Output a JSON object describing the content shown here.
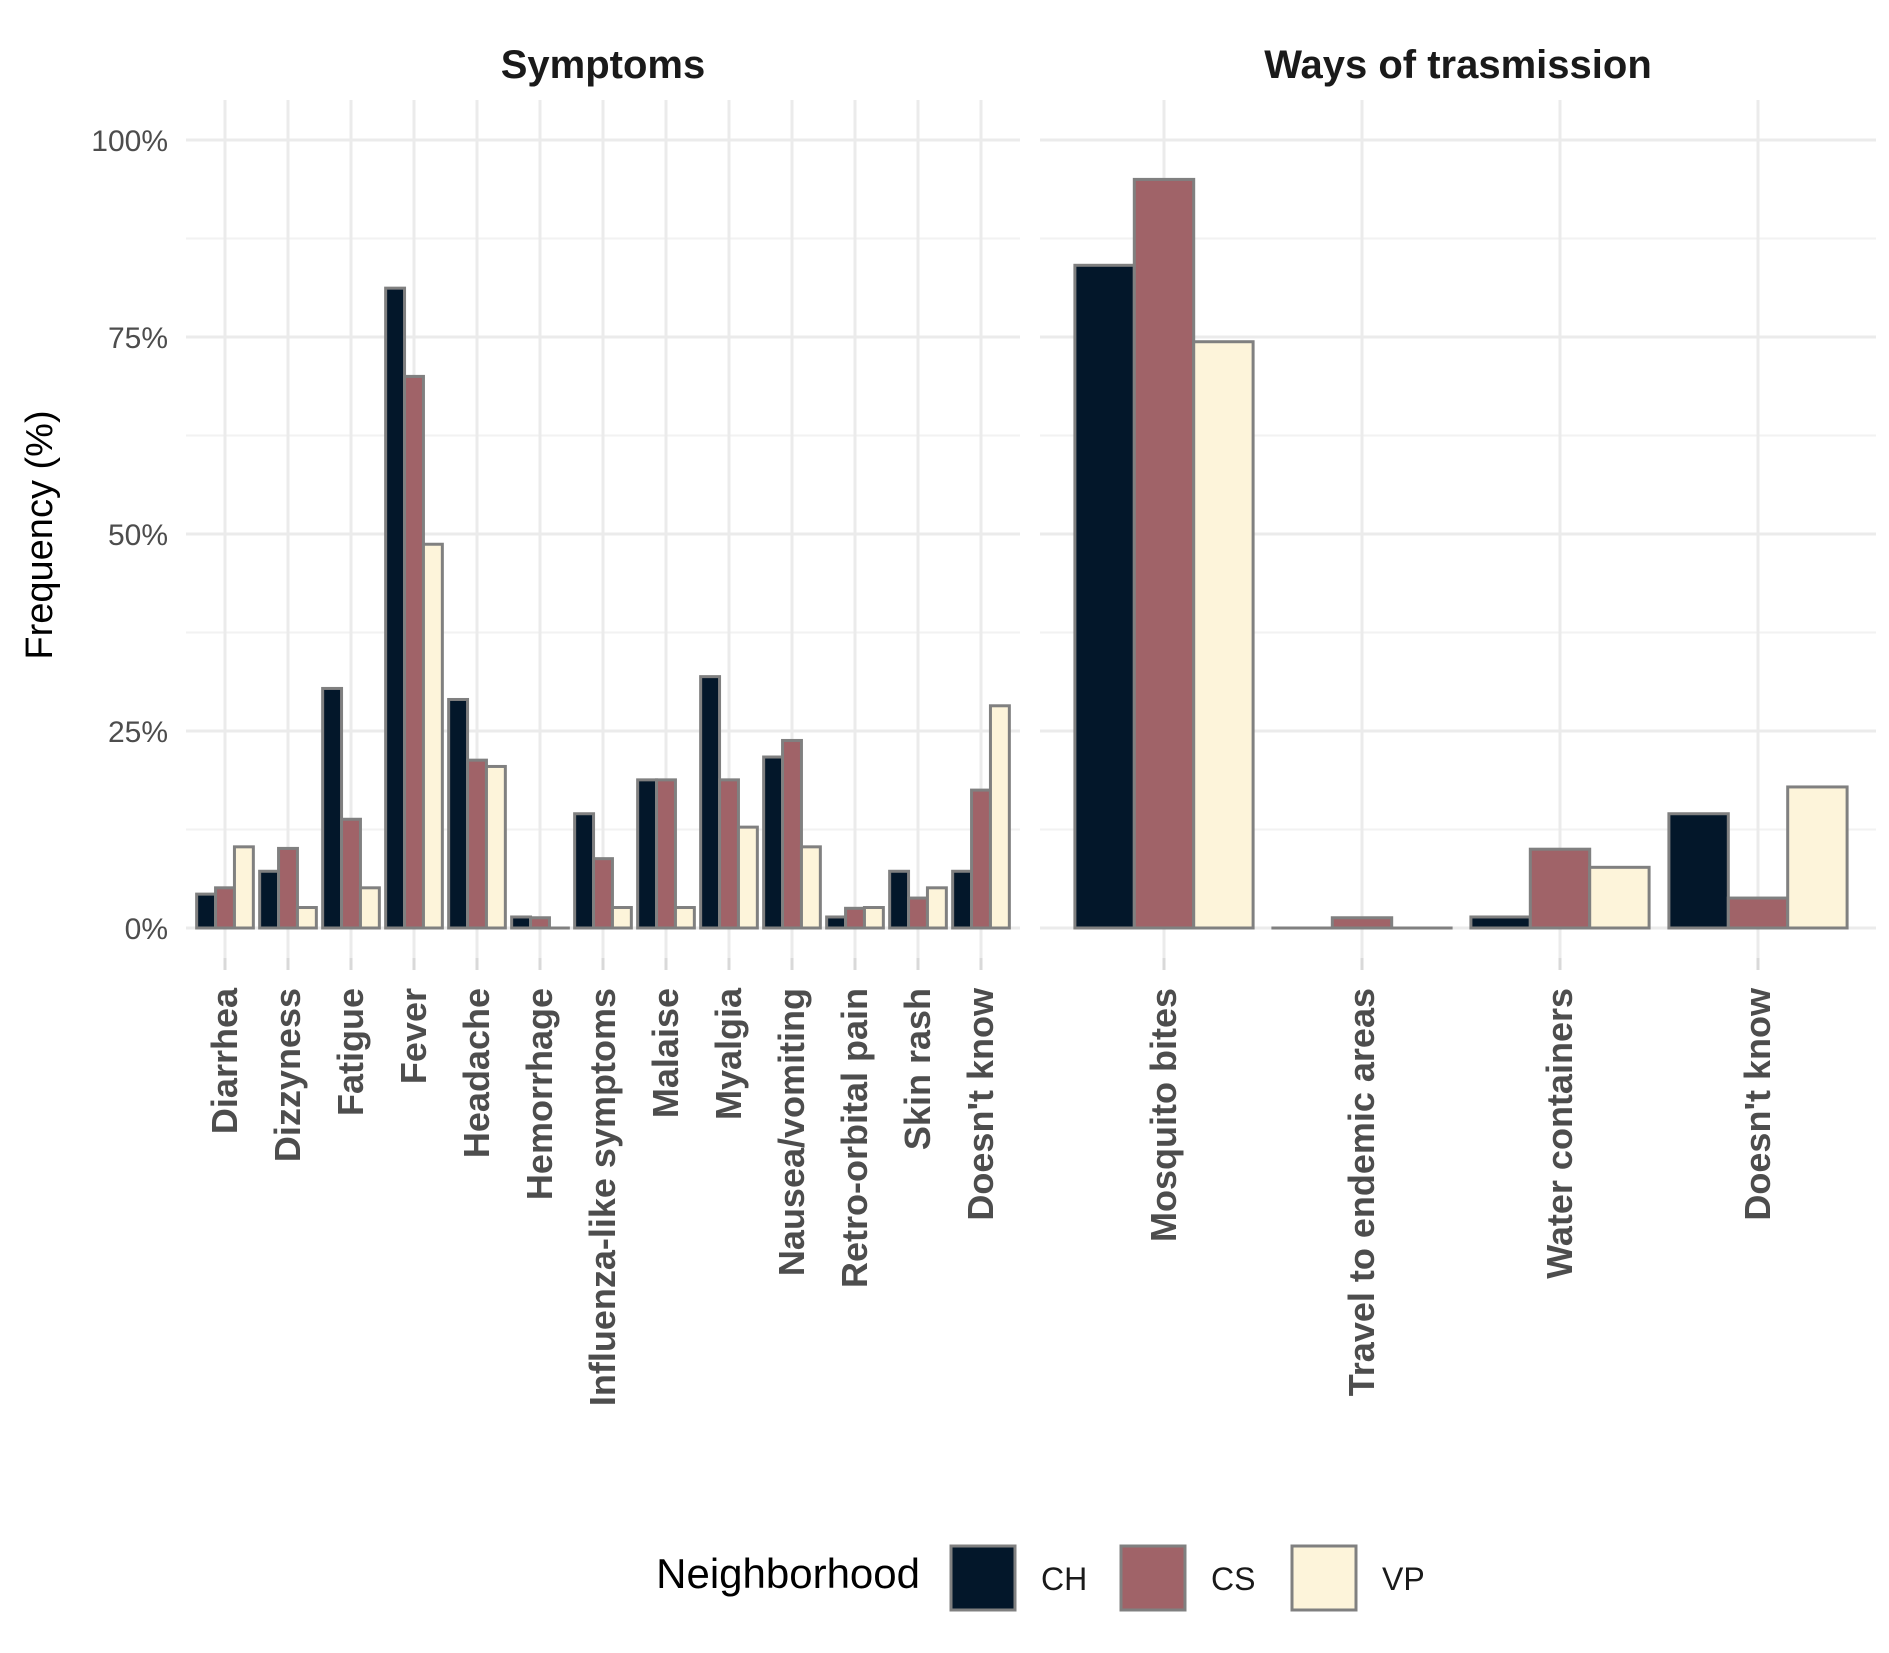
{
  "chart_data": {
    "type": "bar",
    "ylabel": "Frequency (%)",
    "ylim": [
      0,
      100
    ],
    "yticks": [
      "0%",
      "25%",
      "50%",
      "75%",
      "100%"
    ],
    "grid": true,
    "legend": {
      "title": "Neighborhood",
      "position": "bottom",
      "entries": [
        {
          "name": "CH",
          "color": "#03172a"
        },
        {
          "name": "CS",
          "color": "#a06368"
        },
        {
          "name": "VP",
          "color": "#fdf4da"
        }
      ]
    },
    "bar_outline_color": "#808080",
    "panels": [
      {
        "title": "Symptoms",
        "categories": [
          "Diarrhea",
          "Dizzyness",
          "Fatigue",
          "Fever",
          "Headache",
          "Hemorrhage",
          "Influenza-like symptoms",
          "Malaise",
          "Myalgia",
          "Nausea/vomiting",
          "Retro-orbital pain",
          "Skin rash",
          "Doesn't know"
        ],
        "series": [
          {
            "name": "CH",
            "values": [
              4.3,
              7.2,
              30.4,
              81.2,
              29.0,
              1.4,
              14.5,
              18.8,
              31.9,
              21.7,
              1.4,
              7.2,
              7.2
            ]
          },
          {
            "name": "CS",
            "values": [
              5.1,
              10.1,
              13.8,
              70.0,
              21.3,
              1.3,
              8.8,
              18.8,
              18.8,
              23.8,
              2.5,
              3.8,
              17.5
            ]
          },
          {
            "name": "VP",
            "values": [
              10.3,
              2.6,
              5.1,
              48.7,
              20.5,
              0.0,
              2.6,
              2.6,
              12.8,
              10.3,
              2.6,
              5.1,
              28.2
            ]
          }
        ]
      },
      {
        "title": "Ways of trasmission",
        "categories": [
          "Mosquito bites",
          "Travel to endemic areas",
          "Water containers",
          "Doesn't know"
        ],
        "series": [
          {
            "name": "CH",
            "values": [
              84.1,
              0.0,
              1.4,
              14.5
            ]
          },
          {
            "name": "CS",
            "values": [
              95.0,
              1.3,
              10.0,
              3.8
            ]
          },
          {
            "name": "VP",
            "values": [
              74.4,
              0.0,
              7.7,
              17.9
            ]
          }
        ]
      }
    ]
  }
}
